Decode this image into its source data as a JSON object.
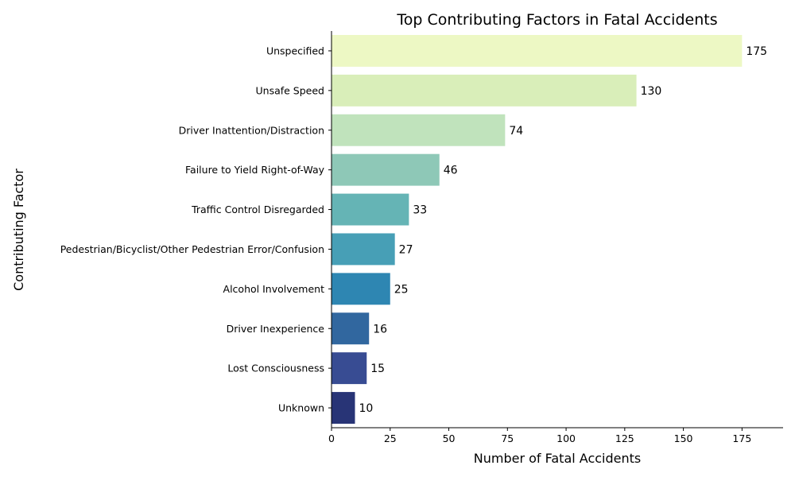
{
  "chart_data": {
    "type": "bar",
    "orientation": "horizontal",
    "title": "Top Contributing Factors in Fatal Accidents",
    "xlabel": "Number of Fatal Accidents",
    "ylabel": "Contributing Factor",
    "xlim": [
      0,
      192.5
    ],
    "xticks": [
      0,
      25,
      50,
      75,
      100,
      125,
      150,
      175
    ],
    "grid": false,
    "categories": [
      "Unspecified",
      "Unsafe Speed",
      "Driver Inattention/Distraction",
      "Failure to Yield Right-of-Way",
      "Traffic Control Disregarded",
      "Pedestrian/Bicyclist/Other Pedestrian Error/Confusion",
      "Alcohol Involvement",
      "Driver Inexperience",
      "Lost Consciousness",
      "Unknown"
    ],
    "values": [
      175,
      130,
      74,
      46,
      33,
      27,
      25,
      16,
      15,
      10
    ],
    "colors": [
      "#edf8c4",
      "#d9eeb9",
      "#c0e3bc",
      "#8ec8b7",
      "#65b4b5",
      "#479fb6",
      "#2e86b2",
      "#31679f",
      "#384c93",
      "#283476"
    ]
  }
}
